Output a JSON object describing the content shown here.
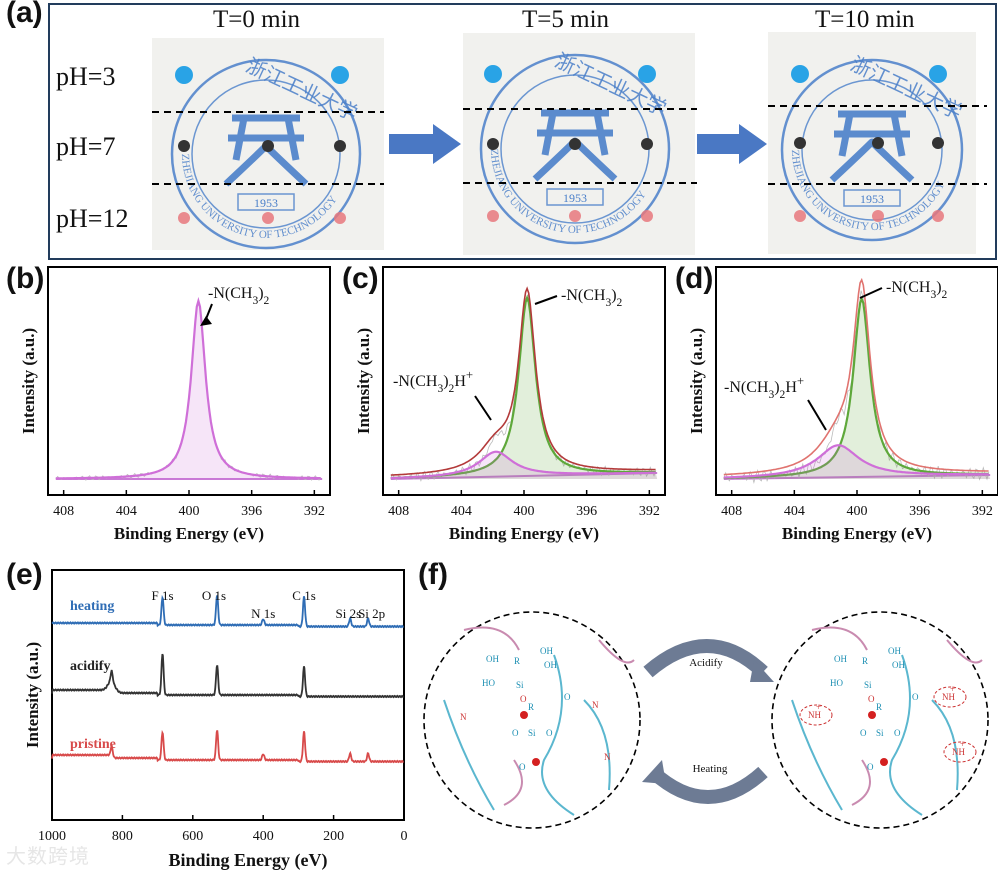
{
  "panel_a": {
    "label": "(a)",
    "times": [
      "T=0 min",
      "T=5 min",
      "T=10 min"
    ],
    "ph_labels": [
      "pH=3",
      "pH=7",
      "pH=12"
    ],
    "logo": {
      "chars": "浙 江 工 业 大 学",
      "arc_text": "ZHEJIANG UNIVERSITY OF TECHNOLOGY",
      "year": "1953"
    },
    "colors": {
      "acid_dot": "#29a3e6",
      "neutral_dot": "#333333",
      "base_dot": "#e8787c",
      "logo_blue": "#4a7fc9",
      "arrow": "#4a78c4"
    }
  },
  "panel_b": {
    "label": "(b)",
    "chart_data": {
      "type": "line",
      "xlabel": "Binding Energy (eV)",
      "ylabel": "Intensity (a.u.)",
      "xlim": [
        409,
        391
      ],
      "xticks": [
        "408",
        "404",
        "400",
        "396",
        "392"
      ],
      "peaks": [
        {
          "name": "-N(CH3)2",
          "center_eV": 399.4,
          "relative_height": 1.0
        }
      ],
      "annotations": [
        "-N(CH₃)₂"
      ]
    }
  },
  "panel_c": {
    "label": "(c)",
    "chart_data": {
      "type": "line",
      "xlabel": "Binding Energy (eV)",
      "ylabel": "Intensity (a.u.)",
      "xlim": [
        409,
        391
      ],
      "xticks": [
        "408",
        "404",
        "400",
        "396",
        "392"
      ],
      "peaks": [
        {
          "name": "-N(CH3)2",
          "center_eV": 399.8,
          "relative_height": 1.0
        },
        {
          "name": "-N(CH3)2H+",
          "center_eV": 401.8,
          "relative_height": 0.14
        }
      ],
      "annotations": [
        "-N(CH₃)₂",
        "-N(CH₃)₂H⁺"
      ]
    }
  },
  "panel_d": {
    "label": "(d)",
    "chart_data": {
      "type": "line",
      "xlabel": "Binding Energy (eV)",
      "ylabel": "Intensity (a.u.)",
      "xlim": [
        409,
        391
      ],
      "xticks": [
        "408",
        "404",
        "400",
        "396",
        "392"
      ],
      "peaks": [
        {
          "name": "-N(CH3)2",
          "center_eV": 399.7,
          "relative_height": 1.0
        },
        {
          "name": "-N(CH3)2H+",
          "center_eV": 401.2,
          "relative_height": 0.18
        }
      ],
      "annotations": [
        "-N(CH₃)₂",
        "-N(CH₃)₂H⁺"
      ]
    }
  },
  "panel_e": {
    "label": "(e)",
    "chart_data": {
      "type": "line",
      "xlabel": "Binding Energy (eV)",
      "ylabel": "Intensity (a.u.)",
      "xlim": [
        1000,
        0
      ],
      "xticks": [
        "1000",
        "800",
        "600",
        "400",
        "200",
        "0"
      ],
      "series": [
        {
          "name": "heating",
          "color": "#2f6db5",
          "peaks_eV": [
            686,
            531,
            400,
            284,
            153,
            102
          ]
        },
        {
          "name": "acidify",
          "color": "#333333",
          "peaks_eV": [
            830,
            686,
            531,
            284
          ]
        },
        {
          "name": "pristine",
          "color": "#d84a4a",
          "peaks_eV": [
            830,
            686,
            531,
            400,
            284,
            153,
            102
          ]
        }
      ],
      "peak_labels": [
        {
          "text": "F 1s",
          "eV": 686
        },
        {
          "text": "O 1s",
          "eV": 531
        },
        {
          "text": "N 1s",
          "eV": 400
        },
        {
          "text": "C 1s",
          "eV": 284
        },
        {
          "text": "Si 2s",
          "eV": 153
        },
        {
          "text": "Si 2p",
          "eV": 102
        }
      ]
    }
  },
  "panel_f": {
    "label": "(f)",
    "top_arrow_label": "Acidify",
    "bottom_arrow_label": "Heating",
    "atoms": {
      "si": "Si",
      "o": "O",
      "r": "R",
      "n": "N",
      "oh": "OH",
      "ho": "HO",
      "nh": "NH",
      "plus": "+"
    }
  },
  "watermark": "大数跨境"
}
